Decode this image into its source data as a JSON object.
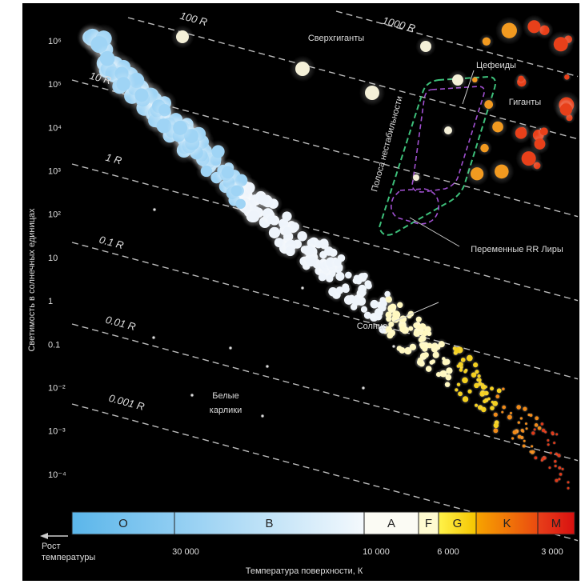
{
  "y_axis": {
    "title": "Светимость в солнечных единицах",
    "ticks": [
      "10⁶",
      "10⁵",
      "10⁴",
      "10³",
      "10²",
      "10",
      "1",
      "0.1",
      "10⁻²",
      "10⁻³",
      "10⁻⁴"
    ]
  },
  "x_axis": {
    "title": "Температура поверхности, К",
    "direction_label": [
      "Рост",
      "температуры"
    ],
    "ticks": [
      "30 000",
      "10 000",
      "6 000",
      "3 000"
    ]
  },
  "spectral_classes": [
    "O",
    "B",
    "A",
    "F",
    "G",
    "K",
    "M"
  ],
  "radius_lines": [
    "1000 R",
    "100 R",
    "10 R",
    "1 R",
    "0.1 R",
    "0.01 R",
    "0.001 R"
  ],
  "annotations": {
    "supergiants": "Сверхгиганты",
    "cepheids": "Цефеиды",
    "giants": "Гиганты",
    "instability_strip": "Полоса нестабильности",
    "rr_lyrae": "Переменные RR Лиры",
    "sun": "Солнце",
    "white_dwarfs": [
      "Белые",
      "карлики"
    ]
  }
}
